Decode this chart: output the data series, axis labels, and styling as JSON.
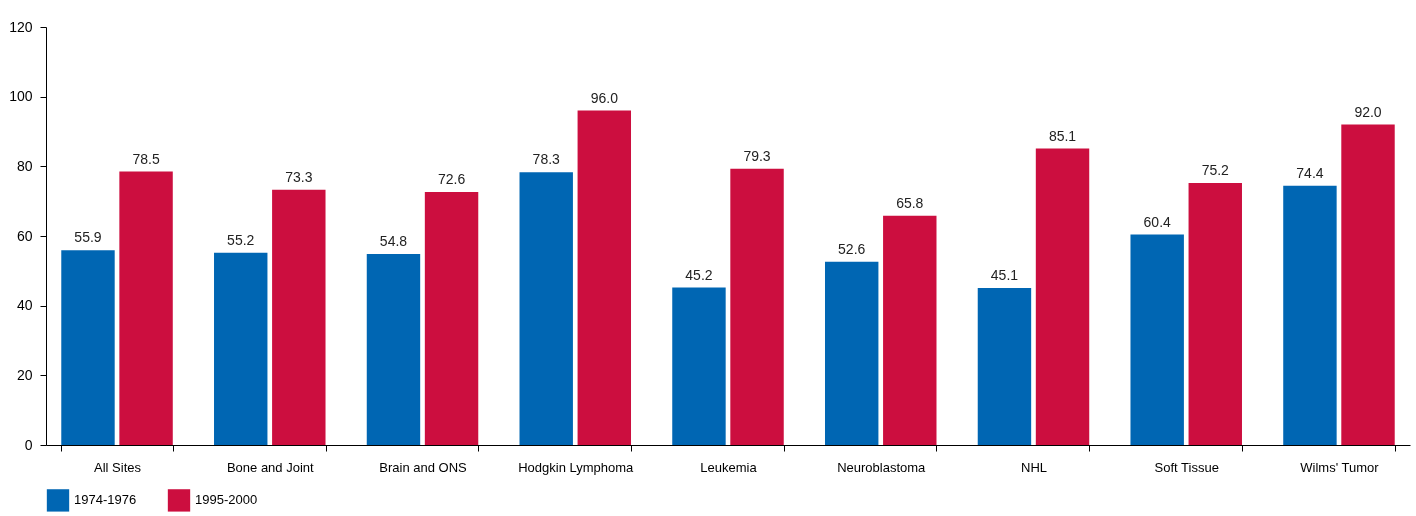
{
  "chart_data": {
    "type": "bar",
    "categories": [
      "All Sites",
      "Bone and Joint",
      "Brain and ONS",
      "Hodgkin Lymphoma",
      "Leukemia",
      "Neuroblastoma",
      "NHL",
      "Soft Tissue",
      "Wilms' Tumor"
    ],
    "series": [
      {
        "name": "1974-1976",
        "color": "#0066b3",
        "values": [
          55.9,
          55.2,
          54.8,
          78.3,
          45.2,
          52.6,
          45.1,
          60.4,
          74.4
        ],
        "value_labels": [
          "55.9",
          "55.2",
          "54.8",
          "78.3",
          "45.2",
          "52.6",
          "45.1",
          "60.4",
          "74.4"
        ]
      },
      {
        "name": "1995-2000",
        "color": "#cc0e3f",
        "values": [
          78.5,
          73.3,
          72.6,
          96.0,
          79.3,
          65.8,
          85.1,
          75.2,
          92.0
        ],
        "value_labels": [
          "78.5",
          "73.3",
          "72.6",
          "96.0",
          "79.3",
          "65.8",
          "85.1",
          "75.2",
          "92.0"
        ]
      }
    ],
    "ylim": [
      0,
      120
    ],
    "yticks": [
      0,
      20,
      40,
      60,
      80,
      100,
      120
    ],
    "legend": "bottom left",
    "grid": false
  }
}
